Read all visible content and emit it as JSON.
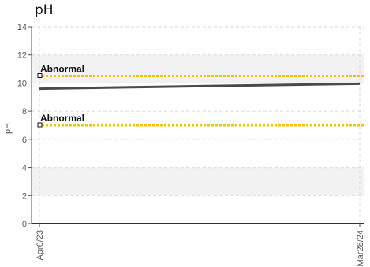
{
  "chart_data": {
    "type": "line",
    "title": "pH",
    "xlabel": "",
    "ylabel": "pH",
    "ylim": [
      0,
      14
    ],
    "yticks": [
      0,
      2,
      4,
      6,
      8,
      10,
      12,
      14
    ],
    "x": [
      "Apr6/23",
      "Mar28/24"
    ],
    "x_tick_labels": [
      "Apr6/23",
      "Mar28/24"
    ],
    "series": [
      {
        "values": [
          9.6,
          9.95
        ],
        "color": "#4a4a4a"
      }
    ],
    "bands": [
      {
        "from": 10,
        "to": 12,
        "color": "#f2f2f2"
      },
      {
        "from": 2,
        "to": 4,
        "color": "#f2f2f2"
      }
    ],
    "reference_lines": [
      {
        "value": 10.5,
        "label": "Abnormal",
        "color": "#f2c200"
      },
      {
        "value": 7.0,
        "label": "Abnormal",
        "color": "#f2c200"
      }
    ],
    "grid": true
  }
}
